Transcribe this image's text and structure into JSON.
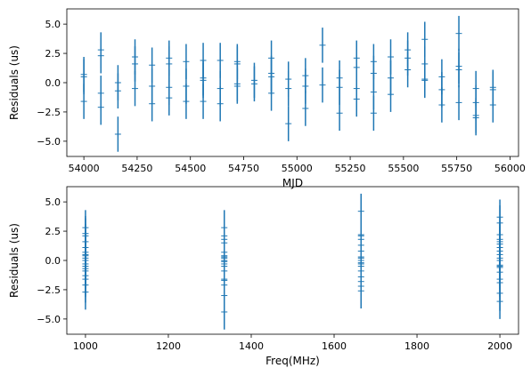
{
  "figure": {
    "line_color": "#1f77b4"
  },
  "chart_data": [
    {
      "type": "scatter",
      "style": "errorbar",
      "xlabel": "MJD",
      "ylabel": "Residuals (us)",
      "xlim": [
        53920,
        56040
      ],
      "ylim": [
        -6.3,
        6.3
      ],
      "x_ticks": [
        54000,
        54250,
        54500,
        54750,
        55000,
        55250,
        55500,
        55750,
        56000
      ],
      "y_ticks": [
        -5.0,
        -2.5,
        0.0,
        2.5,
        5.0
      ],
      "groups": [
        {
          "x": 54000,
          "values": [
            -1.6,
            0.5,
            0.7
          ]
        },
        {
          "x": 54080,
          "values": [
            -2.1,
            -0.9,
            2.3,
            2.8
          ]
        },
        {
          "x": 54160,
          "values": [
            -4.4,
            -0.7,
            0.0
          ]
        },
        {
          "x": 54240,
          "values": [
            -0.5,
            1.6,
            2.2
          ]
        },
        {
          "x": 54320,
          "values": [
            -1.8,
            -0.3,
            1.5
          ]
        },
        {
          "x": 54400,
          "values": [
            -1.3,
            -0.4,
            1.6,
            2.1
          ]
        },
        {
          "x": 54480,
          "values": [
            -1.6,
            -0.3,
            1.8
          ]
        },
        {
          "x": 54560,
          "values": [
            -1.6,
            0.2,
            0.4,
            1.9
          ]
        },
        {
          "x": 54640,
          "values": [
            -1.8,
            -0.5,
            1.9
          ]
        },
        {
          "x": 54720,
          "values": [
            -0.3,
            -0.1,
            1.6,
            1.8
          ]
        },
        {
          "x": 54800,
          "values": [
            -0.1,
            0.2
          ]
        },
        {
          "x": 54880,
          "values": [
            -0.9,
            0.5,
            0.8,
            2.1
          ]
        },
        {
          "x": 54960,
          "values": [
            -3.5,
            -0.5,
            0.3
          ]
        },
        {
          "x": 55040,
          "values": [
            -2.2,
            -0.3,
            0.6
          ]
        },
        {
          "x": 55120,
          "values": [
            -0.2,
            3.2
          ]
        },
        {
          "x": 55200,
          "values": [
            -2.6,
            -0.4,
            0.4
          ]
        },
        {
          "x": 55280,
          "values": [
            -1.4,
            -0.5,
            1.3,
            2.1
          ]
        },
        {
          "x": 55360,
          "values": [
            -2.6,
            -0.8,
            0.8,
            1.8
          ]
        },
        {
          "x": 55440,
          "values": [
            -1.0,
            0.4,
            2.2
          ]
        },
        {
          "x": 55520,
          "values": [
            1.1,
            2.1,
            2.8
          ]
        },
        {
          "x": 55600,
          "values": [
            0.2,
            0.3,
            1.6,
            3.7
          ]
        },
        {
          "x": 55680,
          "values": [
            -1.9,
            -0.6,
            0.5
          ]
        },
        {
          "x": 55760,
          "values": [
            -1.7,
            1.1,
            1.4,
            4.2
          ]
        },
        {
          "x": 55840,
          "values": [
            -2.8,
            -3.0,
            -1.7,
            -0.5
          ]
        },
        {
          "x": 55920,
          "values": [
            -1.9,
            -0.6,
            -0.4
          ]
        }
      ],
      "yerr": 1.5
    },
    {
      "type": "scatter",
      "style": "errorbar",
      "xlabel": "Freq(MHz)",
      "ylabel": "Residuals (us)",
      "xlim": [
        955,
        2045
      ],
      "ylim": [
        -6.3,
        6.3
      ],
      "x_ticks": [
        1000,
        1200,
        1400,
        1600,
        1800,
        2000
      ],
      "y_ticks": [
        -5.0,
        -2.5,
        0.0,
        2.5,
        5.0
      ],
      "groups": [
        {
          "x": 1000,
          "values": [
            -2.7,
            -2.1,
            -1.6,
            -1.3,
            -0.9,
            -0.7,
            -0.5,
            -0.3,
            0.0,
            0.2,
            0.4,
            0.5,
            0.7,
            1.1,
            1.6,
            2.1,
            2.3,
            2.8
          ]
        },
        {
          "x": 1335,
          "values": [
            -4.4,
            -3.0,
            -2.1,
            -1.7,
            -1.6,
            -0.9,
            -0.5,
            -0.3,
            -0.1,
            0.0,
            0.2,
            0.3,
            0.4,
            0.7,
            1.5,
            1.8,
            2.1,
            2.8
          ]
        },
        {
          "x": 1665,
          "values": [
            -2.6,
            -2.2,
            -1.8,
            -1.4,
            -0.9,
            -0.5,
            -0.3,
            -0.2,
            0.0,
            0.2,
            0.3,
            0.8,
            1.3,
            1.8,
            2.1,
            2.2,
            4.2
          ]
        },
        {
          "x": 2000,
          "values": [
            -3.5,
            -2.8,
            -1.9,
            -1.6,
            -1.0,
            -0.6,
            -0.5,
            -0.4,
            0.0,
            0.2,
            0.5,
            0.8,
            1.1,
            1.4,
            1.6,
            1.8,
            2.2,
            3.2,
            3.7
          ]
        }
      ],
      "yerr": 1.5
    }
  ]
}
